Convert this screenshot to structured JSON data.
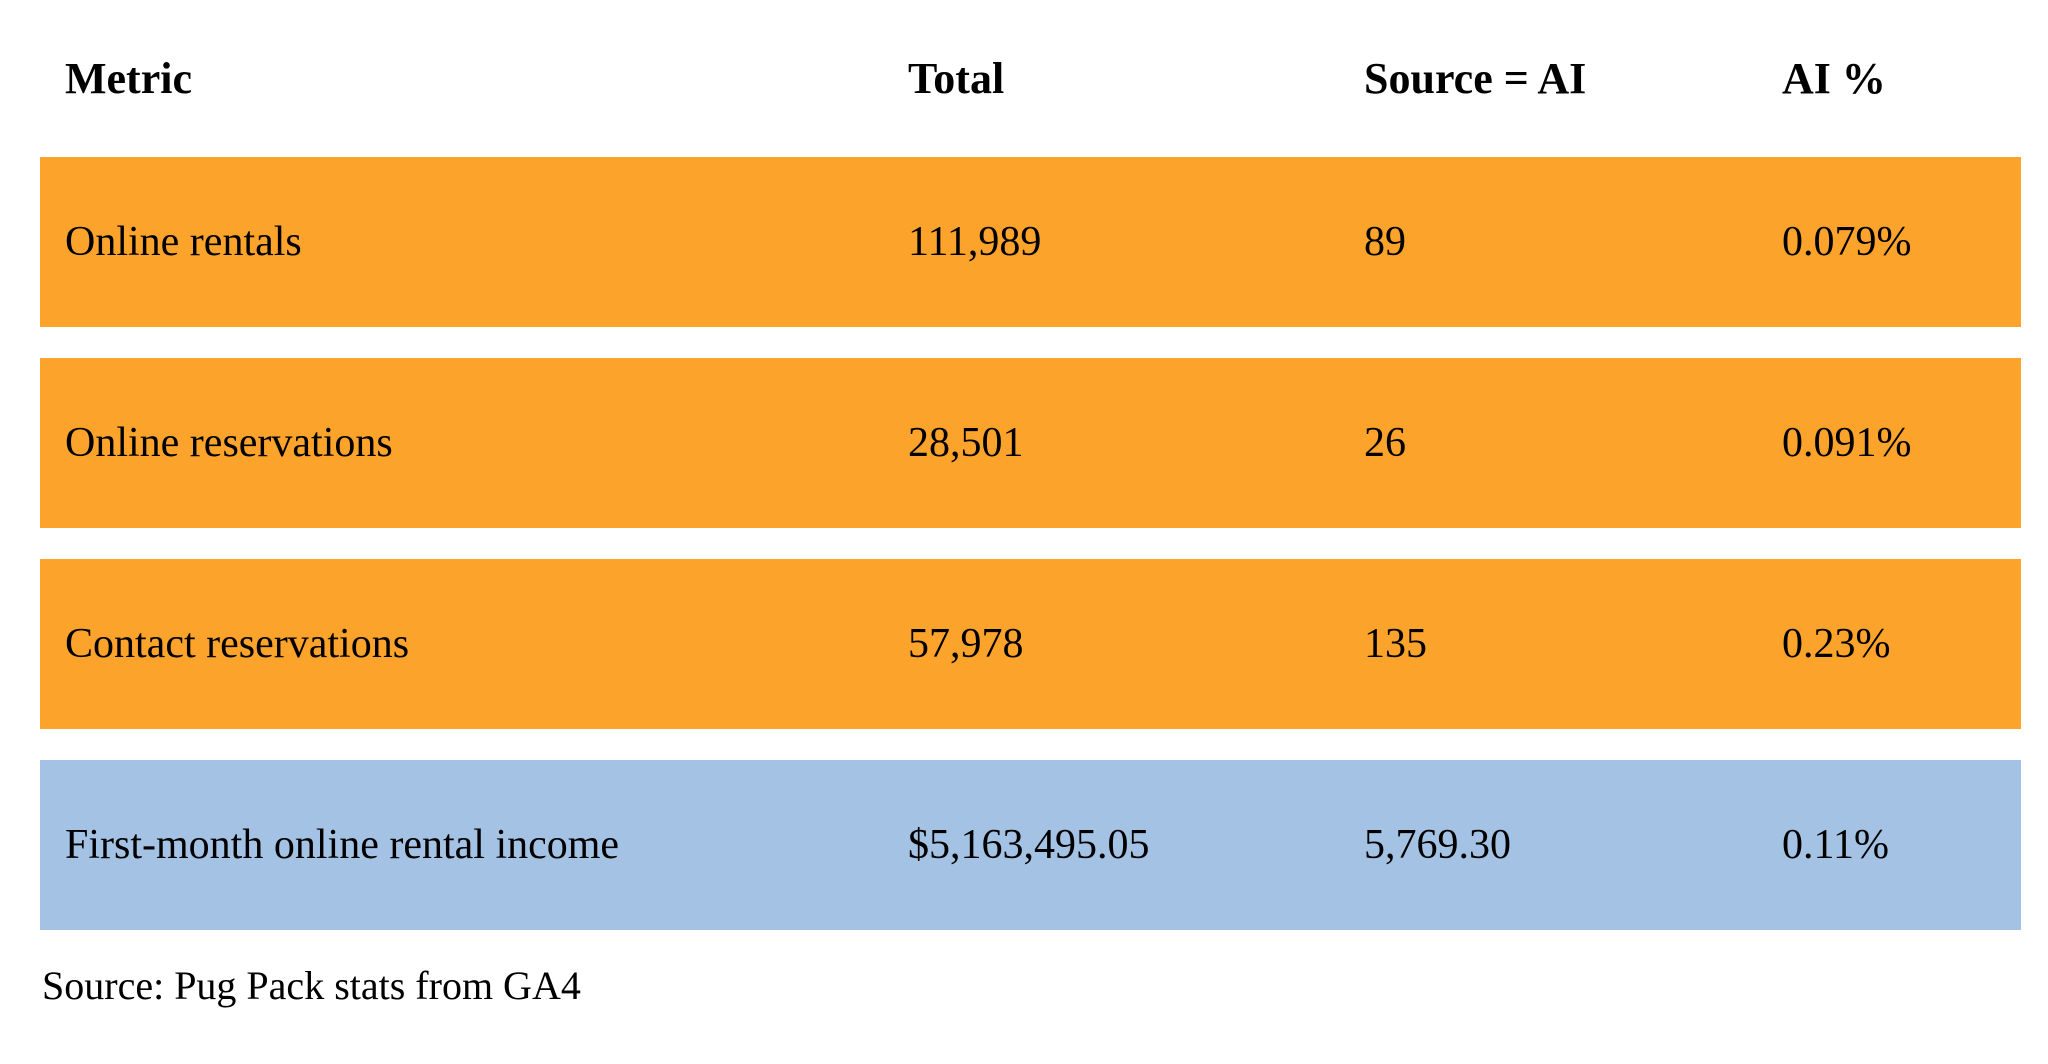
{
  "chart_data": {
    "type": "table",
    "title": "",
    "columns": [
      "Metric",
      "Total",
      "Source = AI",
      "AI %"
    ],
    "rows": [
      [
        "Online rentals",
        "111,989",
        "89",
        "0.079%"
      ],
      [
        "Online reservations",
        "28,501",
        "26",
        "0.091%"
      ],
      [
        "Contact reservations",
        "57,978",
        "135",
        "0.23%"
      ],
      [
        "First-month online rental income",
        "$5,163,495.05",
        "5,769.30",
        "0.11%"
      ]
    ],
    "row_highlights": [
      "orange",
      "orange",
      "orange",
      "blue"
    ],
    "caption": "Source: Pug Pack stats from GA4"
  },
  "table": {
    "header": {
      "metric": "Metric",
      "total": "Total",
      "source_ai": "Source = AI",
      "ai_pct": "AI %"
    },
    "rows": [
      {
        "metric": "Online rentals",
        "total": "111,989",
        "source_ai": "89",
        "ai_pct": "0.079%"
      },
      {
        "metric": "Online reservations",
        "total": "28,501",
        "source_ai": "26",
        "ai_pct": "0.091%"
      },
      {
        "metric": "Contact reservations",
        "total": "57,978",
        "source_ai": "135",
        "ai_pct": "0.23%"
      },
      {
        "metric": "First-month online rental income",
        "total": "$5,163,495.05",
        "source_ai": "5,769.30",
        "ai_pct": "0.11%"
      }
    ]
  },
  "footer": {
    "source_note": "Source: Pug Pack stats from GA4"
  },
  "colors": {
    "row_orange": "#FCA32B",
    "row_blue": "#A4C2E4",
    "text": "#000000",
    "background": "#FFFFFF"
  }
}
